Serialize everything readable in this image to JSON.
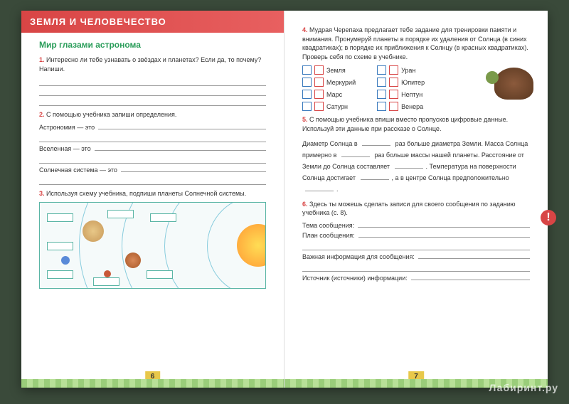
{
  "left": {
    "banner": "ЗЕМЛЯ И ЧЕЛОВЕЧЕСТВО",
    "subtitle": "Мир глазами астронома",
    "q1_num": "1.",
    "q1": "Интересно ли тебе узнавать о звёздах и планетах? Если да, то почему? Напиши.",
    "q2_num": "2.",
    "q2": "С помощью учебника запиши определения.",
    "def1": "Астрономия — это",
    "def2": "Вселенная — это",
    "def3": "Солнечная система — это",
    "q3_num": "3.",
    "q3": "Используя схему учебника, подпиши планеты Солнечной системы.",
    "pagenum": "6"
  },
  "right": {
    "q4_num": "4.",
    "q4": "Мудрая Черепаха предлагает тебе задание для тренировки памяти и внимания. Пронумеруй планеты в порядке их удаления от Солнца (в синих квадратиках); в порядке их приближения к Солнцу (в красных квадратиках). Проверь себя по схеме в учебнике.",
    "planets_col1": [
      "Земля",
      "Меркурий",
      "Марс",
      "Сатурн"
    ],
    "planets_col2": [
      "Уран",
      "Юпитер",
      "Нептун",
      "Венера"
    ],
    "q5_num": "5.",
    "q5": "С помощью учебника впиши вместо пропусков цифровые данные. Используй эти данные при рассказе о Солнце.",
    "fill_text": "Диаметр Солнца в _____ раз больше диаметра Земли. Масса Солнца примерно в _____ раз больше массы нашей планеты. Расстояние от Земли до Солнца составляет _____. Температура на поверхности Солнца достигает _____, а в центре Солнца предположительно _____.",
    "q6_num": "6.",
    "q6": "Здесь ты можешь сделать записи для своего сообщения по заданию учебника (с. 8).",
    "topic": "Тема сообщения:",
    "plan": "План сообщения:",
    "important": "Важная информация для сообщения:",
    "source": "Источник (источники) информации:",
    "pagenum": "7"
  },
  "watermark": "Лабиринт.ру"
}
